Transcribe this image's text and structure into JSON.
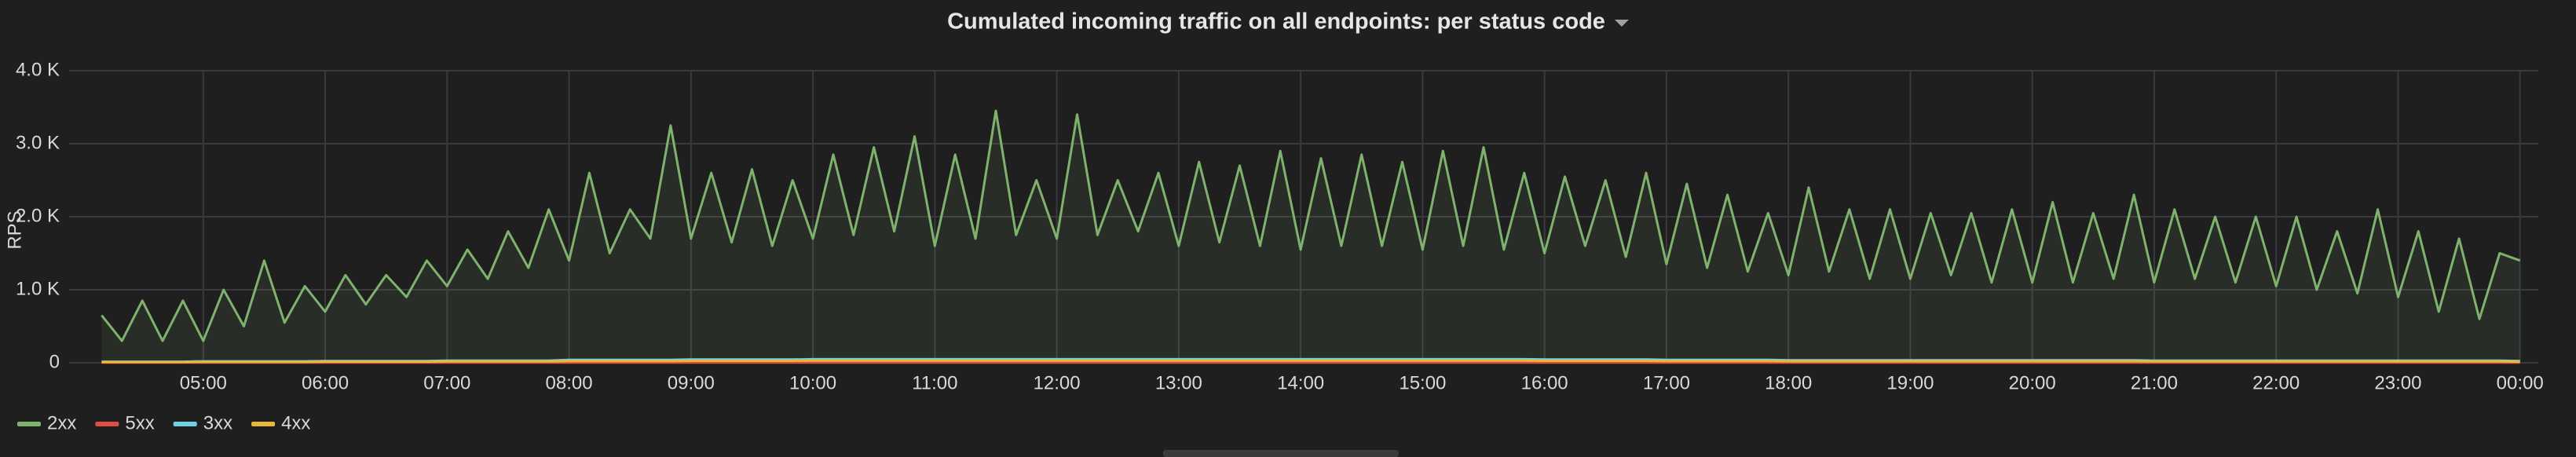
{
  "chart_data": {
    "type": "line",
    "title": "Cumulated incoming traffic on all endpoints: per status code",
    "y_label": "RPS",
    "x": [
      "04:10",
      "04:20",
      "04:30",
      "04:40",
      "04:50",
      "05:00",
      "05:10",
      "05:20",
      "05:30",
      "05:40",
      "05:50",
      "06:00",
      "06:10",
      "06:20",
      "06:30",
      "06:40",
      "06:50",
      "07:00",
      "07:10",
      "07:20",
      "07:30",
      "07:40",
      "07:50",
      "08:00",
      "08:10",
      "08:20",
      "08:30",
      "08:40",
      "08:50",
      "09:00",
      "09:10",
      "09:20",
      "09:30",
      "09:40",
      "09:50",
      "10:00",
      "10:10",
      "10:20",
      "10:30",
      "10:40",
      "10:50",
      "11:00",
      "11:10",
      "11:20",
      "11:30",
      "11:40",
      "11:50",
      "12:00",
      "12:10",
      "12:20",
      "12:30",
      "12:40",
      "12:50",
      "13:00",
      "13:10",
      "13:20",
      "13:30",
      "13:40",
      "13:50",
      "14:00",
      "14:10",
      "14:20",
      "14:30",
      "14:40",
      "14:50",
      "15:00",
      "15:10",
      "15:20",
      "15:30",
      "15:40",
      "15:50",
      "16:00",
      "16:10",
      "16:20",
      "16:30",
      "16:40",
      "16:50",
      "17:00",
      "17:10",
      "17:20",
      "17:30",
      "17:40",
      "17:50",
      "18:00",
      "18:10",
      "18:20",
      "18:30",
      "18:40",
      "18:50",
      "19:00",
      "19:10",
      "19:20",
      "19:30",
      "19:40",
      "19:50",
      "20:00",
      "20:10",
      "20:20",
      "20:30",
      "20:40",
      "20:50",
      "21:00",
      "21:10",
      "21:20",
      "21:30",
      "21:40",
      "21:50",
      "22:00",
      "22:10",
      "22:20",
      "22:30",
      "22:40",
      "22:50",
      "23:00",
      "23:10",
      "23:20",
      "23:30",
      "23:40",
      "23:50",
      "00:00"
    ],
    "xlim": [
      "03:54",
      "00:09"
    ],
    "xticks": [
      "05:00",
      "06:00",
      "07:00",
      "08:00",
      "09:00",
      "10:00",
      "11:00",
      "12:00",
      "13:00",
      "14:00",
      "15:00",
      "16:00",
      "17:00",
      "18:00",
      "19:00",
      "20:00",
      "21:00",
      "22:00",
      "23:00",
      "00:00"
    ],
    "ylim": [
      0,
      4000
    ],
    "yticks": [
      0,
      {
        "value": 1000,
        "label": "1.0 K"
      },
      {
        "value": 2000,
        "label": "2.0 K"
      },
      {
        "value": 3000,
        "label": "3.0 K"
      },
      {
        "value": 4000,
        "label": "4.0 K"
      }
    ],
    "grid": true,
    "legend": "bottom-left",
    "series": [
      {
        "name": "2xx",
        "color": "#7eb26d",
        "values": [
          650,
          300,
          850,
          300,
          850,
          300,
          1000,
          500,
          1400,
          550,
          1050,
          700,
          1200,
          800,
          1200,
          900,
          1400,
          1050,
          1550,
          1150,
          1800,
          1300,
          2100,
          1400,
          2600,
          1500,
          2100,
          1700,
          3250,
          1700,
          2600,
          1650,
          2650,
          1600,
          2500,
          1700,
          2850,
          1750,
          2950,
          1800,
          3100,
          1600,
          2850,
          1700,
          3450,
          1750,
          2500,
          1700,
          3400,
          1750,
          2500,
          1800,
          2600,
          1600,
          2750,
          1650,
          2700,
          1600,
          2900,
          1550,
          2800,
          1600,
          2850,
          1600,
          2750,
          1550,
          2900,
          1600,
          2950,
          1550,
          2600,
          1500,
          2550,
          1600,
          2500,
          1450,
          2600,
          1350,
          2450,
          1300,
          2300,
          1250,
          2050,
          1200,
          2400,
          1250,
          2100,
          1150,
          2100,
          1150,
          2050,
          1200,
          2050,
          1100,
          2100,
          1100,
          2200,
          1100,
          2050,
          1150,
          2300,
          1100,
          2100,
          1150,
          2000,
          1100,
          2000,
          1050,
          2000,
          1000,
          1800,
          950,
          2100,
          900,
          1800,
          700,
          1700,
          600,
          1500,
          1400
        ]
      },
      {
        "name": "5xx",
        "color": "#e24d42",
        "values": [
          2,
          2,
          2,
          2,
          2,
          2,
          2,
          2,
          2,
          2,
          2,
          2,
          2,
          2,
          2,
          2,
          2,
          2,
          2,
          2,
          2,
          2,
          2,
          2,
          2,
          2,
          2,
          2,
          2,
          2,
          2,
          2,
          2,
          2,
          2,
          2,
          2,
          2,
          2,
          2,
          2,
          2,
          2,
          2,
          2,
          2,
          2,
          2,
          2,
          2,
          2,
          2,
          2,
          2,
          2,
          2,
          2,
          2,
          2,
          2,
          2,
          2,
          2,
          2,
          2,
          2,
          2,
          2,
          2,
          2,
          2,
          2,
          2,
          2,
          2,
          2,
          2,
          2,
          2,
          2,
          2,
          2,
          2,
          2,
          2,
          2,
          2,
          2,
          2,
          2,
          2,
          2,
          2,
          2,
          2,
          2,
          2,
          2,
          2,
          2,
          2,
          2,
          2,
          2,
          2,
          2,
          2,
          2,
          2,
          2,
          2,
          2,
          2,
          2,
          2,
          2,
          2,
          2,
          2,
          2
        ]
      },
      {
        "name": "3xx",
        "color": "#6ed0e0",
        "values": [
          15,
          15,
          15,
          15,
          15,
          20,
          20,
          20,
          20,
          20,
          20,
          25,
          25,
          25,
          25,
          25,
          25,
          30,
          30,
          30,
          30,
          30,
          30,
          40,
          40,
          40,
          40,
          40,
          40,
          45,
          45,
          45,
          45,
          45,
          45,
          50,
          50,
          50,
          50,
          50,
          50,
          50,
          50,
          50,
          50,
          50,
          50,
          50,
          50,
          50,
          50,
          50,
          50,
          50,
          50,
          50,
          50,
          50,
          50,
          50,
          50,
          50,
          50,
          50,
          50,
          50,
          50,
          50,
          50,
          50,
          50,
          45,
          45,
          45,
          45,
          45,
          45,
          40,
          40,
          40,
          40,
          40,
          40,
          35,
          35,
          35,
          35,
          35,
          35,
          35,
          35,
          35,
          35,
          35,
          35,
          35,
          35,
          35,
          35,
          35,
          35,
          30,
          30,
          30,
          30,
          30,
          30,
          30,
          30,
          30,
          30,
          30,
          30,
          30,
          30,
          30,
          30,
          30,
          30,
          25
        ]
      },
      {
        "name": "4xx",
        "color": "#eab839",
        "values": [
          10,
          10,
          10,
          10,
          10,
          12,
          12,
          12,
          12,
          12,
          12,
          15,
          15,
          15,
          15,
          15,
          15,
          18,
          18,
          18,
          18,
          18,
          18,
          24,
          24,
          24,
          24,
          24,
          24,
          27,
          27,
          27,
          27,
          27,
          27,
          30,
          30,
          30,
          30,
          30,
          30,
          30,
          30,
          30,
          30,
          30,
          30,
          30,
          30,
          30,
          30,
          30,
          30,
          30,
          30,
          30,
          30,
          30,
          30,
          30,
          30,
          30,
          30,
          30,
          30,
          30,
          30,
          30,
          30,
          30,
          30,
          27,
          27,
          27,
          27,
          27,
          27,
          24,
          24,
          24,
          24,
          24,
          24,
          21,
          21,
          21,
          21,
          21,
          21,
          21,
          21,
          21,
          21,
          21,
          21,
          21,
          21,
          21,
          21,
          21,
          21,
          18,
          18,
          18,
          18,
          18,
          18,
          18,
          18,
          18,
          18,
          18,
          18,
          18,
          18,
          18,
          18,
          18,
          18,
          15
        ]
      }
    ]
  }
}
